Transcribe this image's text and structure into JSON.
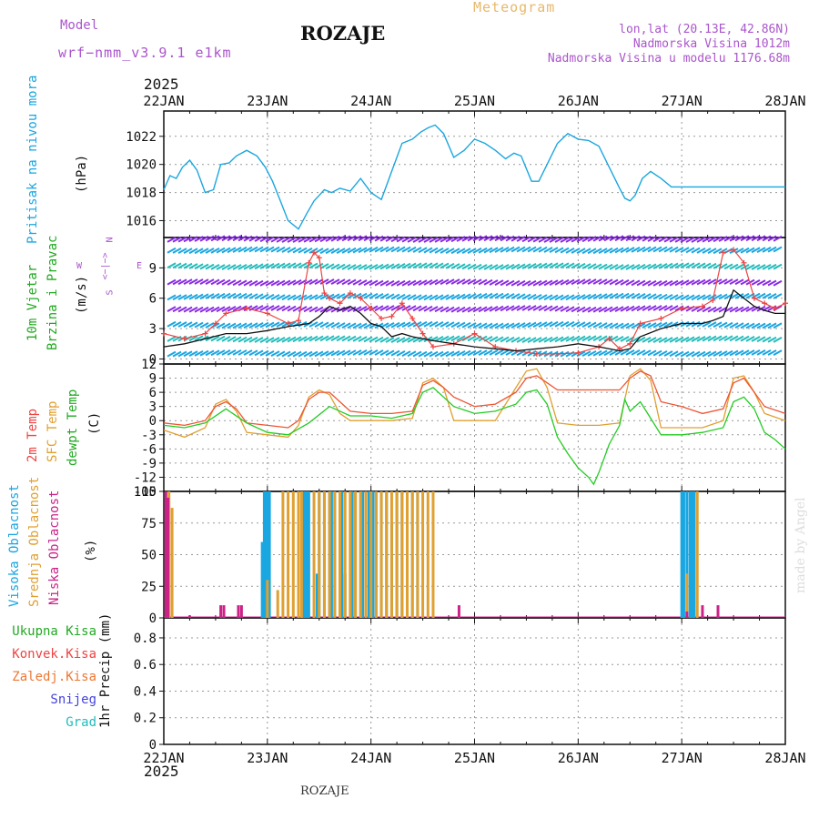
{
  "header": {
    "model_label": "Model",
    "model_name": "wrf−nmm_v3.9.1  e1km",
    "station": "ROZAJE",
    "product": "Meteogram",
    "lonlat": "lon,lat (20.13E, 42.86N)",
    "elevation": "Nadmorska Visina 1012m",
    "model_elevation": "Nadmorska Visina u modelu 1176.68m",
    "year_top": "2025",
    "year_bottom": "2025",
    "footer_station": "ROZAJE",
    "credit": "made by Angel"
  },
  "colors": {
    "pressure": "#1aa6e0",
    "wind_speed": "#111111",
    "wind_gust": "#ee4444",
    "temp_2m": "#ee5533",
    "temp_sfc": "#e0a030",
    "dewpoint": "#22cc22",
    "high_cloud": "#1aa6e0",
    "mid_cloud": "#e0a030",
    "low_cloud": "#cc2288",
    "grid": "#999999"
  },
  "chart_data": [
    {
      "type": "line",
      "name": "pressure-panel",
      "ylabels": [
        "Pritisak na nivou mora",
        "(hPa)"
      ],
      "x_ticks": [
        "22JAN",
        "23JAN",
        "24JAN",
        "25JAN",
        "26JAN",
        "27JAN",
        "28JAN"
      ],
      "y_ticks": [
        1016,
        1018,
        1020,
        1022
      ],
      "ylim": [
        1014.8,
        1023.8
      ],
      "grid": true,
      "series": [
        {
          "x": [
            0,
            0.06,
            0.12,
            0.18,
            0.25,
            0.32,
            0.4,
            0.48,
            0.55,
            0.63,
            0.7,
            0.8,
            0.9,
            0.98,
            1.05,
            1.12,
            1.2,
            1.3,
            1.38,
            1.45,
            1.5,
            1.55,
            1.62,
            1.7,
            1.8,
            1.9,
            2.0,
            2.1,
            2.2,
            2.3,
            2.4,
            2.48,
            2.55,
            2.62,
            2.7,
            2.8,
            2.9,
            3.0,
            3.1,
            3.2,
            3.3,
            3.38,
            3.45,
            3.55,
            3.62,
            3.7,
            3.8,
            3.9,
            4.0,
            4.1,
            4.2,
            4.3,
            4.4,
            4.45,
            4.5,
            4.55,
            4.62,
            4.7,
            4.8,
            4.9,
            5.0,
            5.1,
            5.2,
            5.3,
            5.4,
            5.45,
            5.5,
            5.55,
            5.62,
            5.7,
            5.8,
            5.9,
            6.0
          ],
          "values": [
            1018.2,
            1019.2,
            1019.0,
            1019.8,
            1020.3,
            1019.6,
            1018.0,
            1018.2,
            1020.0,
            1020.1,
            1020.6,
            1021.0,
            1020.6,
            1019.8,
            1018.8,
            1017.5,
            1016.0,
            1015.4,
            1016.5,
            1017.4,
            1017.8,
            1018.2,
            1018.0,
            1018.3,
            1018.1,
            1019.0,
            1018.0,
            1017.5,
            1019.5,
            1021.5,
            1021.8,
            1022.3,
            1022.6,
            1022.8,
            1022.2,
            1020.5,
            1021.0,
            1021.8,
            1021.5,
            1021.0,
            1020.4,
            1020.8,
            1020.6,
            1018.8,
            1018.8,
            1020.0,
            1021.5,
            1022.2,
            1021.8,
            1021.7,
            1021.3,
            1019.8,
            1018.3,
            1017.6,
            1017.4,
            1017.8,
            1019.0,
            1019.5,
            1019.0,
            1018.4,
            1018.4,
            1018.4,
            1018.4,
            1018.4,
            1018.4,
            1018.4,
            1018.4,
            1018.4,
            1018.4,
            1018.4,
            1018.4,
            1018.4,
            1018.4
          ]
        }
      ]
    },
    {
      "type": "line",
      "name": "wind-panel",
      "ylabels": [
        "10m Vjetar",
        "Brzina i Pravac",
        "(m/s)"
      ],
      "compass": {
        "n": "N",
        "s": "S",
        "e": "E",
        "w": "W",
        "glyph": "<−|−>"
      },
      "y_ticks": [
        0,
        3,
        6,
        9
      ],
      "ylim": [
        -0.5,
        12
      ],
      "grid": true,
      "series": [
        {
          "name": "speed",
          "x": [
            0,
            0.2,
            0.4,
            0.6,
            0.8,
            1.0,
            1.2,
            1.4,
            1.5,
            1.6,
            1.7,
            1.8,
            1.9,
            2.0,
            2.1,
            2.2,
            2.3,
            2.4,
            2.6,
            2.8,
            3.0,
            3.2,
            3.4,
            3.6,
            3.8,
            4.0,
            4.2,
            4.4,
            4.5,
            4.6,
            4.8,
            5.0,
            5.2,
            5.3,
            5.4,
            5.5,
            5.6,
            5.7,
            5.8,
            5.9,
            6.0
          ],
          "values": [
            1.2,
            1.5,
            2.0,
            2.5,
            2.5,
            2.8,
            3.2,
            3.5,
            4.2,
            5.2,
            4.8,
            5.2,
            4.5,
            3.5,
            3.2,
            2.2,
            2.5,
            2.2,
            1.8,
            1.5,
            1.2,
            1.0,
            0.8,
            1.0,
            1.2,
            1.5,
            1.2,
            0.8,
            1.0,
            2.2,
            3.0,
            3.5,
            3.5,
            3.8,
            4.2,
            6.8,
            6.0,
            5.2,
            4.8,
            4.5,
            4.5
          ]
        },
        {
          "name": "gust",
          "x": [
            0,
            0.2,
            0.4,
            0.5,
            0.6,
            0.8,
            1.0,
            1.2,
            1.3,
            1.4,
            1.45,
            1.5,
            1.55,
            1.6,
            1.7,
            1.8,
            1.9,
            2.0,
            2.1,
            2.2,
            2.3,
            2.4,
            2.5,
            2.6,
            2.8,
            3.0,
            3.2,
            3.4,
            3.6,
            3.8,
            4.0,
            4.2,
            4.3,
            4.4,
            4.5,
            4.6,
            4.8,
            5.0,
            5.2,
            5.3,
            5.4,
            5.5,
            5.6,
            5.7,
            5.8,
            5.9,
            6.0
          ],
          "values": [
            2.5,
            2.0,
            2.5,
            3.5,
            4.5,
            5.0,
            4.5,
            3.5,
            3.8,
            9.5,
            10.5,
            10.0,
            6.5,
            6.0,
            5.5,
            6.5,
            6.0,
            5.0,
            4.0,
            4.2,
            5.5,
            4.0,
            2.5,
            1.2,
            1.5,
            2.5,
            1.2,
            0.8,
            0.5,
            0.5,
            0.6,
            1.2,
            2.0,
            1.0,
            1.5,
            3.5,
            4.0,
            5.0,
            5.2,
            5.8,
            10.5,
            10.8,
            9.5,
            6.0,
            5.5,
            5.0,
            5.5
          ]
        }
      ]
    },
    {
      "type": "line",
      "name": "temperature-panel",
      "ylabels": [
        "2m Temp",
        "SFC Temp",
        "dewpt Temp",
        "(C)"
      ],
      "y_ticks": [
        12,
        9,
        6,
        3,
        0,
        -3,
        -6,
        -9,
        -12,
        -15
      ],
      "ylim": [
        -15,
        12
      ],
      "grid": true,
      "series": [
        {
          "name": "2m Temp",
          "x": [
            0,
            0.2,
            0.4,
            0.5,
            0.6,
            0.7,
            0.8,
            1.0,
            1.2,
            1.3,
            1.4,
            1.5,
            1.6,
            1.7,
            1.8,
            2.0,
            2.2,
            2.4,
            2.5,
            2.6,
            2.7,
            2.8,
            3.0,
            3.2,
            3.4,
            3.5,
            3.6,
            3.7,
            3.8,
            4.0,
            4.2,
            4.4,
            4.5,
            4.6,
            4.7,
            4.8,
            5.0,
            5.2,
            5.4,
            5.5,
            5.6,
            5.7,
            5.8,
            6.0
          ],
          "values": [
            -0.5,
            -1.0,
            0,
            3.0,
            4.0,
            2.5,
            -0.5,
            -1.0,
            -1.5,
            0,
            4.5,
            6.0,
            6.0,
            4.0,
            2.0,
            1.5,
            1.5,
            2.0,
            7.5,
            8.5,
            7.0,
            5.0,
            3.0,
            3.5,
            6.0,
            9.0,
            9.5,
            8.0,
            6.5,
            6.5,
            6.5,
            6.5,
            9.0,
            10.5,
            9.5,
            4.0,
            3.0,
            1.5,
            2.5,
            8.0,
            9.0,
            6.0,
            3.0,
            1.5
          ]
        },
        {
          "name": "SFC Temp",
          "x": [
            0,
            0.2,
            0.4,
            0.5,
            0.6,
            0.7,
            0.8,
            1.0,
            1.2,
            1.3,
            1.4,
            1.5,
            1.6,
            1.7,
            1.8,
            2.0,
            2.2,
            2.4,
            2.5,
            2.6,
            2.7,
            2.8,
            3.0,
            3.2,
            3.4,
            3.5,
            3.6,
            3.7,
            3.8,
            4.0,
            4.2,
            4.4,
            4.5,
            4.6,
            4.7,
            4.8,
            5.0,
            5.2,
            5.4,
            5.5,
            5.6,
            5.7,
            5.8,
            6.0
          ],
          "values": [
            -2.0,
            -3.5,
            -1.5,
            3.5,
            4.5,
            2.0,
            -2.5,
            -3.0,
            -3.5,
            -1.0,
            5.0,
            6.5,
            5.5,
            1.5,
            0,
            0,
            0,
            0.5,
            8.0,
            9.0,
            7.0,
            0,
            0,
            0,
            7.0,
            10.5,
            11.0,
            7.0,
            -0.5,
            -1.0,
            -1.0,
            -0.5,
            9.5,
            11.0,
            8.5,
            -1.5,
            -1.5,
            -1.5,
            0,
            9.0,
            9.5,
            6.0,
            1.5,
            0
          ]
        },
        {
          "name": "dewpt Temp",
          "x": [
            0,
            0.2,
            0.4,
            0.6,
            0.8,
            1.0,
            1.2,
            1.4,
            1.6,
            1.8,
            2.0,
            2.2,
            2.4,
            2.5,
            2.6,
            2.7,
            2.8,
            3.0,
            3.2,
            3.4,
            3.5,
            3.6,
            3.7,
            3.8,
            3.9,
            4.0,
            4.1,
            4.15,
            4.2,
            4.3,
            4.4,
            4.45,
            4.5,
            4.6,
            4.7,
            4.8,
            5.0,
            5.2,
            5.4,
            5.5,
            5.6,
            5.7,
            5.8,
            5.9,
            6.0
          ],
          "values": [
            -1.0,
            -1.5,
            -0.5,
            2.5,
            -0.5,
            -2.5,
            -3.0,
            -0.5,
            3.0,
            1.0,
            1.0,
            0.5,
            1.5,
            6.0,
            7.0,
            5.0,
            3.0,
            1.5,
            2.0,
            3.5,
            6.0,
            6.5,
            3.5,
            -3.5,
            -7.0,
            -10.0,
            -12.0,
            -13.5,
            -11.0,
            -5.0,
            -1.0,
            4.5,
            2.0,
            4.0,
            0.5,
            -3.0,
            -3.0,
            -2.5,
            -1.5,
            4.0,
            5.0,
            2.5,
            -2.5,
            -4.0,
            -6.0
          ]
        }
      ]
    },
    {
      "type": "bar",
      "name": "cloud-panel",
      "ylabels": [
        "Visoka Oblacnost",
        "Srednja Oblacnost",
        "Niska Oblacnost",
        "(%)"
      ],
      "y_ticks": [
        0,
        25,
        50,
        75,
        100
      ],
      "ylim": [
        0,
        100
      ],
      "grid": true,
      "series": [
        {
          "name": "Visoka Oblacnost",
          "x": [
            0.95,
            0.97,
            0.98,
            0.99,
            1.0,
            1.01,
            1.02,
            1.35,
            1.36,
            1.37,
            1.38,
            1.39,
            1.4,
            1.48,
            1.5,
            1.55,
            1.6,
            1.62,
            1.65,
            1.7,
            1.72,
            1.75,
            1.8,
            1.82,
            1.85,
            1.9,
            1.92,
            1.95,
            1.98,
            2.0,
            2.02,
            2.05,
            2.1,
            2.15,
            2.2,
            2.25,
            2.3,
            2.35,
            2.4,
            2.45,
            5.0,
            5.02,
            5.05,
            5.08,
            5.1,
            5.12
          ],
          "values": [
            60,
            100,
            100,
            100,
            100,
            100,
            100,
            100,
            100,
            100,
            100,
            100,
            100,
            35,
            100,
            100,
            100,
            100,
            100,
            100,
            100,
            35,
            100,
            100,
            100,
            100,
            100,
            100,
            100,
            100,
            100,
            100,
            100,
            100,
            75,
            100,
            100,
            100,
            100,
            100,
            100,
            100,
            100,
            100,
            100,
            100
          ]
        },
        {
          "name": "Srednja Oblacnost",
          "x": [
            0.05,
            0.08,
            1.0,
            1.1,
            1.15,
            1.2,
            1.25,
            1.3,
            1.33,
            1.45,
            1.5,
            1.55,
            1.6,
            1.65,
            1.7,
            1.75,
            1.8,
            1.85,
            1.9,
            1.95,
            2.0,
            2.05,
            2.1,
            2.15,
            2.2,
            2.25,
            2.3,
            2.35,
            2.4,
            2.45,
            2.5,
            2.55,
            2.6,
            5.05,
            5.15
          ],
          "values": [
            100,
            87,
            30,
            22,
            100,
            100,
            100,
            100,
            100,
            100,
            100,
            100,
            100,
            100,
            100,
            100,
            100,
            100,
            100,
            100,
            100,
            100,
            100,
            100,
            100,
            100,
            100,
            100,
            100,
            100,
            100,
            100,
            100,
            35,
            100
          ]
        },
        {
          "name": "Niska Oblacnost",
          "x": [
            0.02,
            0.04,
            0.25,
            0.55,
            0.58,
            0.72,
            0.75,
            2.85,
            5.05,
            5.2,
            5.35
          ],
          "values": [
            100,
            95,
            2,
            10,
            10,
            10,
            10,
            10,
            5,
            10,
            10
          ]
        }
      ]
    },
    {
      "type": "line",
      "name": "precip-panel",
      "ylabels": [
        "1hr Precip (mm)"
      ],
      "legend": [
        "Ukupna Kisa",
        "Konvek.Kisa",
        "Zaledj.Kisa",
        "Snijeg",
        "Grad"
      ],
      "legend_colors": [
        "#22aa22",
        "#ee4444",
        "#ee7733",
        "#4444dd",
        "#22bbbb"
      ],
      "y_ticks": [
        0,
        0.2,
        0.4,
        0.6,
        0.8
      ],
      "ylim": [
        0,
        0.95
      ],
      "grid": true,
      "series": []
    }
  ]
}
